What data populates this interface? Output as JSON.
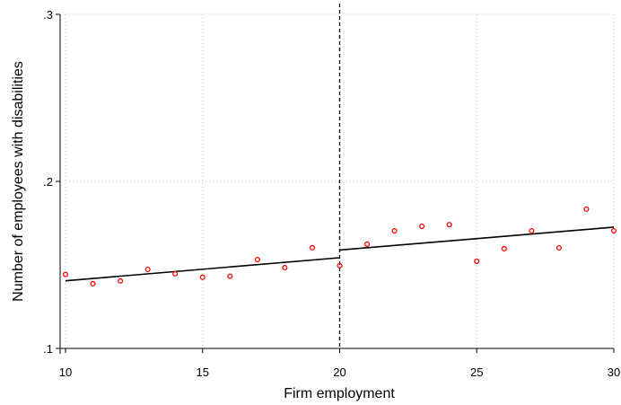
{
  "chart_data": {
    "type": "scatter",
    "title": "",
    "xlabel": "Firm employment",
    "ylabel": "Number of employees with disabilities",
    "xlim": [
      10,
      30
    ],
    "ylim": [
      0.1,
      0.3
    ],
    "x_ticks": [
      10,
      15,
      20,
      25,
      30
    ],
    "x_tick_labels": [
      "10",
      "15",
      "20",
      "25",
      "30"
    ],
    "y_ticks": [
      0.1,
      0.2,
      0.3
    ],
    "y_tick_labels": [
      ".1",
      ".2",
      ".3"
    ],
    "grid": true,
    "threshold_x": 20,
    "series": [
      {
        "type": "scatter",
        "color": "#ff0000",
        "x": [
          10,
          11,
          12,
          13,
          14,
          15,
          16,
          17,
          18,
          19,
          20,
          21,
          22,
          23,
          24,
          25,
          26,
          27,
          28,
          29,
          30
        ],
        "y": [
          0.1443,
          0.1388,
          0.1404,
          0.1473,
          0.1447,
          0.1426,
          0.1432,
          0.1532,
          0.1484,
          0.1603,
          0.1496,
          0.1624,
          0.1704,
          0.1731,
          0.1741,
          0.1522,
          0.1597,
          0.1704,
          0.1602,
          0.1834,
          0.1704
        ]
      }
    ],
    "fit_lines": [
      {
        "type": "line",
        "color": "#000000",
        "x": [
          10,
          20
        ],
        "y": [
          0.1405,
          0.1543
        ]
      },
      {
        "type": "line",
        "color": "#000000",
        "x": [
          20,
          30
        ],
        "y": [
          0.1589,
          0.1726
        ]
      }
    ]
  }
}
